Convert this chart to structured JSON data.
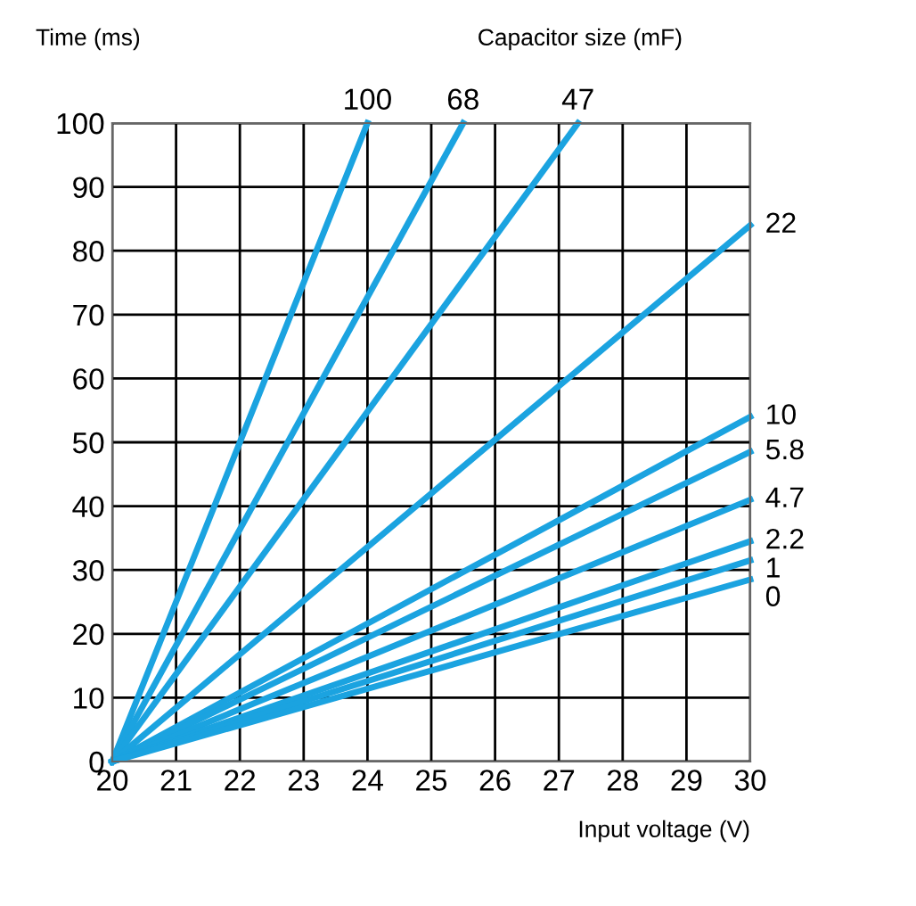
{
  "chart_data": {
    "type": "line",
    "ylabel": "Time (ms)",
    "xlabel": "Input voltage (V)",
    "legend_title": "Capacitor size (mF)",
    "xlim": [
      20,
      30
    ],
    "ylim": [
      0,
      100
    ],
    "xticks": [
      20,
      21,
      22,
      23,
      24,
      25,
      26,
      27,
      28,
      29,
      30
    ],
    "yticks": [
      0,
      10,
      20,
      30,
      40,
      50,
      60,
      70,
      80,
      90,
      100
    ],
    "grid": true,
    "marker": "none",
    "line_style": "solid",
    "series": [
      {
        "name": "100",
        "color": "#1ba3e0",
        "x": [
          20,
          24.0
        ],
        "values": [
          0,
          100
        ]
      },
      {
        "name": "68",
        "color": "#1ba3e0",
        "x": [
          20,
          25.5
        ],
        "values": [
          0,
          100
        ]
      },
      {
        "name": "47",
        "color": "#1ba3e0",
        "x": [
          20,
          27.3
        ],
        "values": [
          0,
          100
        ]
      },
      {
        "name": "22",
        "color": "#1ba3e0",
        "x": [
          20,
          30
        ],
        "values": [
          0,
          84
        ]
      },
      {
        "name": "10",
        "color": "#1ba3e0",
        "x": [
          20,
          30
        ],
        "values": [
          0,
          54
        ]
      },
      {
        "name": "5.8",
        "color": "#1ba3e0",
        "x": [
          20,
          30
        ],
        "values": [
          0,
          48.5
        ]
      },
      {
        "name": "4.7",
        "color": "#1ba3e0",
        "x": [
          20,
          30
        ],
        "values": [
          0,
          41
        ]
      },
      {
        "name": "2.2",
        "color": "#1ba3e0",
        "x": [
          20,
          30
        ],
        "values": [
          0,
          34.5
        ]
      },
      {
        "name": "1",
        "color": "#1ba3e0",
        "x": [
          20,
          30
        ],
        "values": [
          0,
          31.5
        ]
      },
      {
        "name": "0",
        "color": "#1ba3e0",
        "x": [
          20,
          30
        ],
        "values": [
          0,
          28.5
        ]
      }
    ]
  }
}
